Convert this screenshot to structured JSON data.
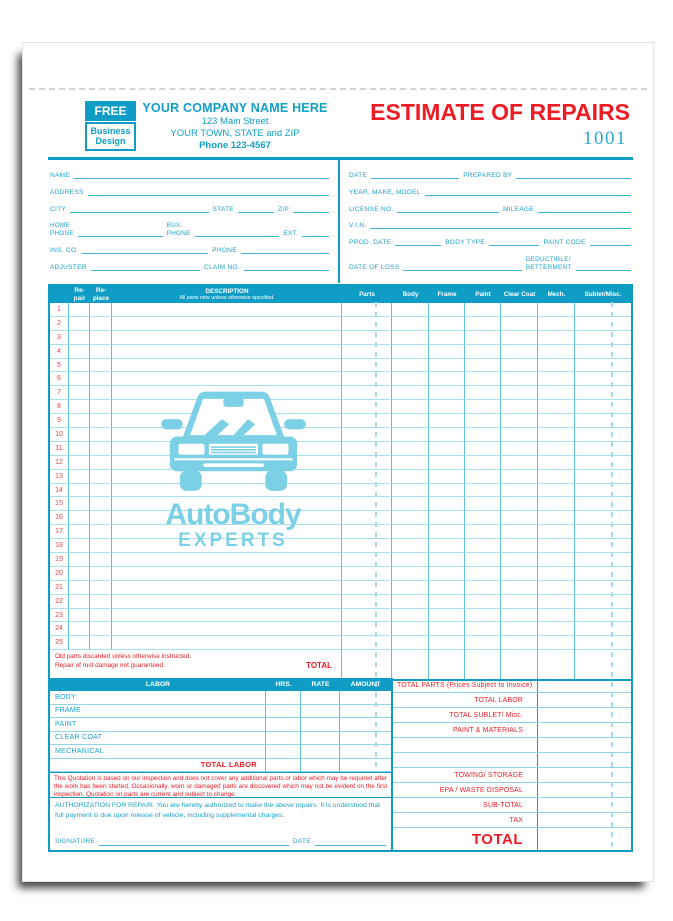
{
  "page": {
    "badge": {
      "free": "FREE",
      "business": "Business",
      "design": "Design"
    },
    "company": {
      "name": "YOUR COMPANY NAME HERE",
      "address": "123 Main Street",
      "city_line": "YOUR TOWN, STATE and ZIP",
      "phone": "Phone 123-4567"
    },
    "title": "ESTIMATE OF REPAIRS",
    "form_number": "1001"
  },
  "info_left": [
    [
      {
        "l": "NAME",
        "f": 6
      }
    ],
    [
      {
        "l": "ADDRESS",
        "f": 6
      }
    ],
    [
      {
        "l": "CITY",
        "f": 5
      },
      {
        "l": "STATE",
        "f": 1.3
      },
      {
        "l": "ZIP",
        "f": 1.3
      }
    ],
    [
      {
        "l2": [
          "HOME",
          "PHONE"
        ],
        "f": 3.5
      },
      {
        "l2": [
          "BUS.",
          "PHONE"
        ],
        "f": 3.5
      },
      {
        "l": "EXT.",
        "f": 1.1
      }
    ],
    [
      {
        "l": "INS. CO.",
        "f": 5
      },
      {
        "l": "PHONE",
        "f": 3.5
      }
    ],
    [
      {
        "l": "ADJUSTER",
        "f": 4.5
      },
      {
        "l": "CLAIM NO.",
        "f": 3.5
      }
    ]
  ],
  "info_right": [
    [
      {
        "l": "DATE",
        "f": 2
      },
      {
        "l": "PREPARED BY",
        "f": 2.6
      }
    ],
    [
      {
        "l": "YEAR, MAKE, MODEL",
        "f": 6
      }
    ],
    [
      {
        "l": "LICENSE NO.",
        "f": 2.4
      },
      {
        "l": "MILEAGE",
        "f": 2.2
      }
    ],
    [
      {
        "l": "V.I.N.",
        "f": 6
      }
    ],
    [
      {
        "l": "PROD. DATE",
        "f": 1
      },
      {
        "l": "BODY TYPE",
        "f": 1.1
      },
      {
        "l": "PAINT CODE",
        "f": 0.9
      }
    ],
    [
      {
        "l": "DATE OF LOSS",
        "f": 3.2
      },
      {
        "l2": [
          "DEDUCTIBLE/",
          "BETTERMENT"
        ],
        "f": 1.5
      }
    ]
  ],
  "parts_table": {
    "headers": {
      "repair": [
        "Re-",
        "pair"
      ],
      "replace": [
        "Re-",
        "place"
      ],
      "description": "DESCRIPTION",
      "description_sub": "All parts new unless otherwise specified.",
      "parts": "Parts",
      "body": "Body",
      "frame": "Frame",
      "paint": "Paint",
      "clear_coat": "Clear Coat",
      "mech": "Mech.",
      "sublet": "Sublet/Misc."
    },
    "row_numbers": [
      "1",
      "2",
      "3",
      "4",
      "5",
      "6",
      "7",
      "8",
      "9",
      "10",
      "11",
      "12",
      "13",
      "14",
      "15",
      "16",
      "17",
      "18",
      "19",
      "20",
      "21",
      "22",
      "23",
      "24",
      "25"
    ],
    "footer_note_line1": "Old parts discarded unless otherwise instructed.",
    "footer_note_line2": "Repair of rust damage not guaranteed.",
    "footer_total_label": "TOTAL"
  },
  "watermark": {
    "line1": "AutoBody",
    "line2": "EXPERTS"
  },
  "labor_table": {
    "headers": [
      "LABOR",
      "HRS.",
      "RATE",
      "AMOUNT"
    ],
    "rows": [
      "BODY",
      "FRAME",
      "PAINT",
      "CLEAR COAT",
      "MECHANICAL"
    ],
    "total_label": "TOTAL LABOR"
  },
  "totals": {
    "rows": [
      {
        "label": "TOTAL PARTS (Prices Subject to Invoice)",
        "align": "left"
      },
      {
        "label": "TOTAL LABOR"
      },
      {
        "label": "TOTAL SUBLET/  Misc."
      },
      {
        "label": "PAINT & MATERIALS"
      },
      {
        "label": ""
      },
      {
        "label": ""
      },
      {
        "label": "TOWING/ STORAGE"
      },
      {
        "label": "EPA / WASTE DISPOSAL"
      },
      {
        "label": "SUB-TOTAL"
      },
      {
        "label": "TAX"
      },
      {
        "label": "TOTAL",
        "big": true
      }
    ]
  },
  "quotation_note": "This Quotation is based on our inspection and does not cover any additional parts or labor which may be required after the work has been started. Occasionally, worn or damaged parts are discovered which may not be evident on the first inspection. Quotation on parts are current and subject to change.",
  "authorization": {
    "text": "AUTHORIZATION FOR REPAIR. You are hereby authorized to make the above repairs. It is understood that full payment is due upon release of vehicle, including supplemental charges.",
    "signature_label": "SIGNATURE",
    "date_label": "DATE"
  },
  "colors": {
    "teal": "#0f9dc6",
    "light_teal": "#7bd0e6",
    "red": "#ed1c24"
  }
}
